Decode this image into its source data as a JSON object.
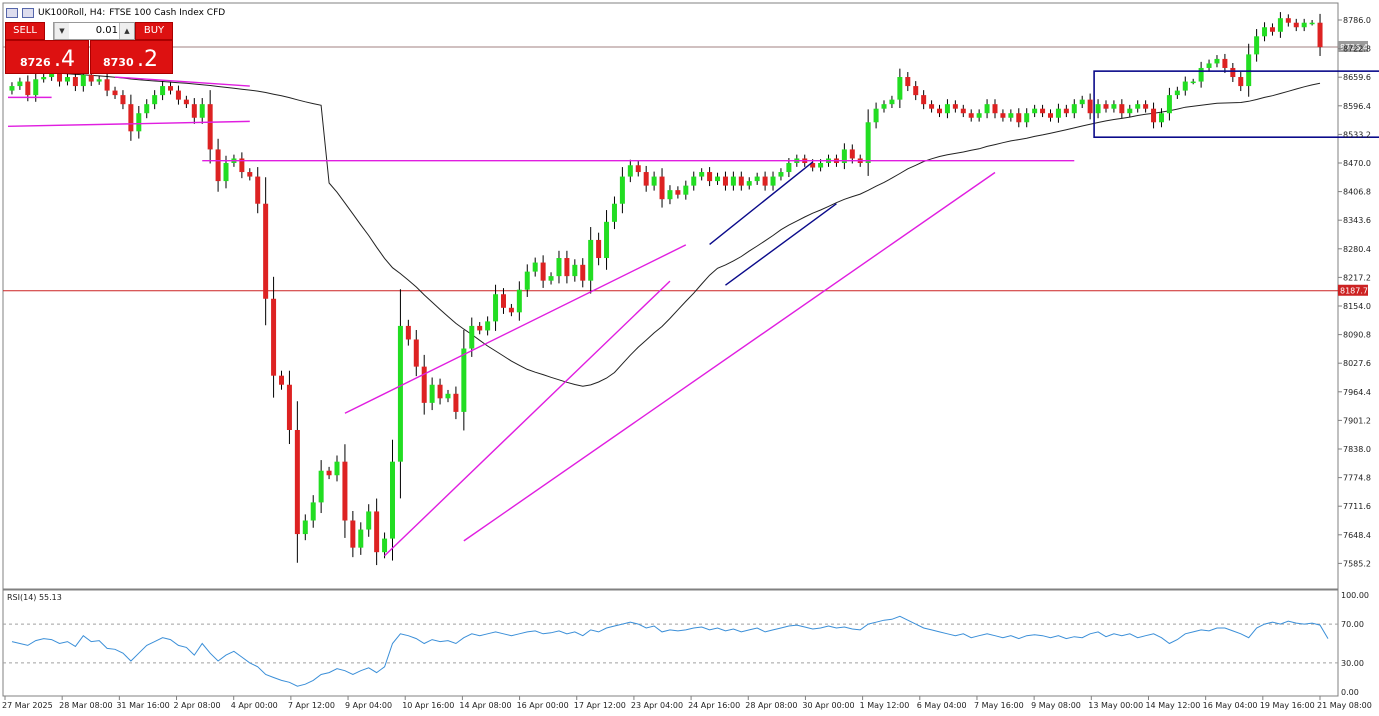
{
  "header": {
    "symbol": "UK100Roll, H4:",
    "description": "FTSE 100 Cash Index CFD"
  },
  "trade_panel": {
    "sell_label": "SELL",
    "buy_label": "BUY",
    "lot": "0.01",
    "sell_small": "8726",
    "sell_big": ".4",
    "buy_small": "8730",
    "buy_big": ".2"
  },
  "colors": {
    "bull": "#22dd22",
    "bear": "#dd2222",
    "ma": "#222222",
    "trendline": "#e01ee0",
    "channel": "#0a0a8a",
    "rsi": "#3b8fd8",
    "grid": "#808080",
    "bid_line": "#a08080",
    "level_line": "#cc2222"
  },
  "chart_data": {
    "type": "candlestick",
    "ylim": [
      7550,
      8815
    ],
    "y_ticks": [
      "8786.0",
      "8722.8",
      "8659.6",
      "8596.4",
      "8533.2",
      "8470.0",
      "8406.8",
      "8343.6",
      "8280.4",
      "8217.2",
      "8154.0",
      "8090.8",
      "8027.6",
      "7964.4",
      "7901.2",
      "7838.0",
      "7774.8",
      "7711.6",
      "7648.4",
      "7585.2"
    ],
    "price_labels": {
      "bid": "8726.4",
      "level": "8187.7"
    },
    "x_labels": [
      "27 Mar 2025",
      "28 Mar 08:00",
      "31 Mar 16:00",
      "2 Apr 08:00",
      "4 Apr 00:00",
      "7 Apr 12:00",
      "9 Apr 04:00",
      "10 Apr 16:00",
      "14 Apr 08:00",
      "16 Apr 00:00",
      "17 Apr 12:00",
      "23 Apr 04:00",
      "24 Apr 16:00",
      "28 Apr 08:00",
      "30 Apr 00:00",
      "1 May 12:00",
      "6 May 04:00",
      "7 May 16:00",
      "9 May 08:00",
      "13 May 00:00",
      "14 May 12:00",
      "16 May 04:00",
      "19 May 16:00",
      "21 May 08:00"
    ],
    "close": [
      8640,
      8650,
      8620,
      8655,
      8660,
      8670,
      8650,
      8660,
      8640,
      8665,
      8650,
      8655,
      8630,
      8620,
      8600,
      8540,
      8580,
      8600,
      8620,
      8640,
      8630,
      8610,
      8600,
      8570,
      8600,
      8500,
      8430,
      8470,
      8480,
      8450,
      8440,
      8380,
      8170,
      8000,
      7980,
      7880,
      7650,
      7680,
      7720,
      7790,
      7780,
      7810,
      7680,
      7620,
      7660,
      7700,
      7610,
      7640,
      7810,
      8110,
      8080,
      8020,
      7940,
      7980,
      7950,
      7960,
      7920,
      8060,
      8110,
      8100,
      8120,
      8180,
      8150,
      8140,
      8190,
      8230,
      8250,
      8210,
      8220,
      8260,
      8220,
      8245,
      8210,
      8300,
      8260,
      8340,
      8380,
      8440,
      8465,
      8450,
      8420,
      8440,
      8390,
      8410,
      8400,
      8420,
      8440,
      8450,
      8430,
      8440,
      8420,
      8440,
      8420,
      8430,
      8440,
      8420,
      8440,
      8450,
      8470,
      8480,
      8470,
      8460,
      8470,
      8480,
      8470,
      8500,
      8480,
      8470,
      8560,
      8590,
      8600,
      8610,
      8660,
      8640,
      8620,
      8600,
      8590,
      8580,
      8600,
      8590,
      8580,
      8570,
      8580,
      8600,
      8580,
      8570,
      8580,
      8560,
      8580,
      8590,
      8580,
      8570,
      8590,
      8580,
      8600,
      8610,
      8580,
      8600,
      8590,
      8600,
      8580,
      8590,
      8600,
      8590,
      8560,
      8580,
      8620,
      8630,
      8650,
      8650,
      8680,
      8690,
      8700,
      8680,
      8660,
      8640,
      8710,
      8750,
      8770,
      8760,
      8790,
      8780,
      8770,
      8780,
      8780,
      8726
    ]
  },
  "indicator": {
    "label": "RSI(14) 55.13",
    "y_ticks": [
      "100.00",
      "70.00",
      "30.00",
      "0.00"
    ],
    "levels": [
      70,
      30
    ],
    "values": [
      52,
      50,
      48,
      53,
      55,
      54,
      50,
      52,
      47,
      58,
      52,
      53,
      45,
      44,
      40,
      32,
      40,
      48,
      52,
      56,
      54,
      48,
      46,
      38,
      50,
      40,
      32,
      38,
      42,
      36,
      30,
      26,
      18,
      15,
      12,
      10,
      6,
      8,
      12,
      18,
      20,
      24,
      22,
      18,
      22,
      25,
      20,
      26,
      50,
      60,
      58,
      55,
      50,
      54,
      52,
      53,
      50,
      56,
      60,
      58,
      60,
      62,
      60,
      58,
      60,
      62,
      63,
      60,
      61,
      63,
      60,
      62,
      58,
      64,
      62,
      66,
      68,
      70,
      72,
      70,
      66,
      68,
      62,
      64,
      63,
      64,
      66,
      67,
      64,
      66,
      63,
      65,
      62,
      64,
      66,
      62,
      64,
      66,
      68,
      69,
      67,
      65,
      66,
      68,
      66,
      67,
      65,
      64,
      70,
      72,
      74,
      75,
      78,
      74,
      70,
      66,
      64,
      62,
      60,
      58,
      60,
      56,
      58,
      60,
      58,
      56,
      58,
      55,
      58,
      59,
      58,
      56,
      58,
      55,
      57,
      56,
      60,
      62,
      57,
      60,
      58,
      60,
      56,
      58,
      60,
      56,
      50,
      54,
      60,
      62,
      64,
      63,
      66,
      66,
      63,
      60,
      56,
      66,
      70,
      72,
      70,
      73,
      71,
      70,
      71,
      69,
      55
    ]
  }
}
